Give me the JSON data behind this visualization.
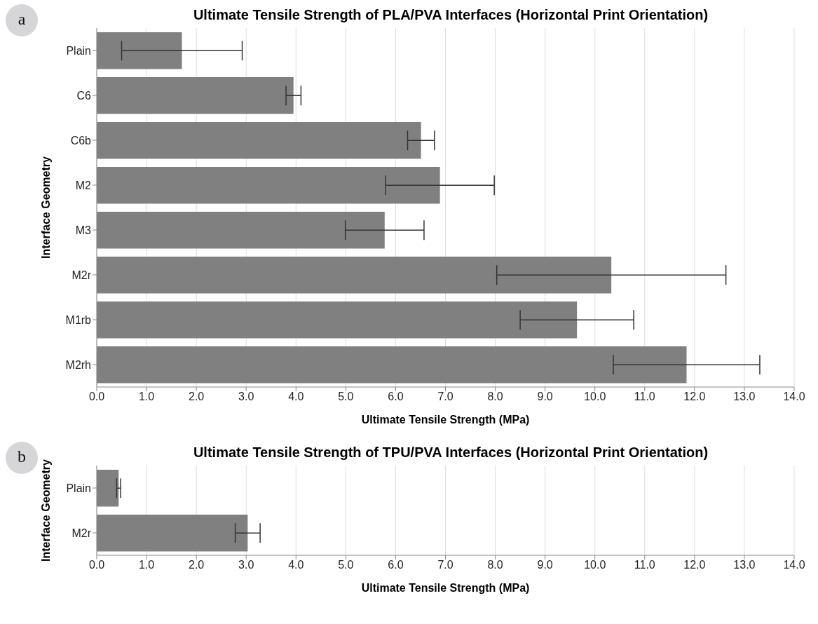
{
  "chart_data": [
    {
      "type": "bar",
      "orientation": "horizontal",
      "title": "Ultimate Tensile Strength of PLA/PVA Interfaces (Horizontal Print Orientation)",
      "xlabel": "Ultimate Tensile Strength (MPa)",
      "ylabel": "Interface Geometry",
      "annotations": [
        "a"
      ],
      "categories": [
        "Plain",
        "C6",
        "C6b",
        "M2",
        "M3",
        "M2r",
        "M1rb",
        "M2rh"
      ],
      "values": [
        1.71,
        3.95,
        6.51,
        6.89,
        5.78,
        10.33,
        9.64,
        11.84
      ],
      "errors": [
        1.21,
        0.15,
        0.27,
        1.09,
        0.79,
        2.3,
        1.14,
        1.47
      ],
      "color": "#808080",
      "grid": "x",
      "xlim": [
        0,
        14
      ],
      "xticks": [
        {
          "value": 0,
          "label": "0.0"
        },
        {
          "value": 1,
          "label": "1.0"
        },
        {
          "value": 2,
          "label": "2.0"
        },
        {
          "value": 3,
          "label": "3.0"
        },
        {
          "value": 4,
          "label": "4.0"
        },
        {
          "value": 5,
          "label": "5.0"
        },
        {
          "value": 6,
          "label": "6.0"
        },
        {
          "value": 7,
          "label": "7.0"
        },
        {
          "value": 8,
          "label": "8.0"
        },
        {
          "value": 9,
          "label": "9.0"
        },
        {
          "value": 10,
          "label": "10.0"
        },
        {
          "value": 11,
          "label": "11.0"
        },
        {
          "value": 12,
          "label": "12.0"
        },
        {
          "value": 13,
          "label": "13.0"
        },
        {
          "value": 14,
          "label": "14.0"
        }
      ]
    },
    {
      "type": "bar",
      "orientation": "horizontal",
      "title": "Ultimate Tensile Strength of TPU/PVA Interfaces (Horizontal Print Orientation)",
      "xlabel": "Ultimate Tensile Strength (MPa)",
      "ylabel": "Interface Geometry",
      "annotations": [
        "b"
      ],
      "categories": [
        "Plain",
        "M2r"
      ],
      "values": [
        0.44,
        3.03
      ],
      "errors": [
        0.04,
        0.25
      ],
      "color": "#808080",
      "grid": "x",
      "xlim": [
        0,
        14
      ],
      "xticks": [
        {
          "value": 0,
          "label": "0.0"
        },
        {
          "value": 1,
          "label": "1.0"
        },
        {
          "value": 2,
          "label": "2.0"
        },
        {
          "value": 3,
          "label": "3.0"
        },
        {
          "value": 4,
          "label": "4.0"
        },
        {
          "value": 5,
          "label": "5.0"
        },
        {
          "value": 6,
          "label": "6.0"
        },
        {
          "value": 7,
          "label": "7.0"
        },
        {
          "value": 8,
          "label": "8.0"
        },
        {
          "value": 9,
          "label": "9.0"
        },
        {
          "value": 10,
          "label": "10.0"
        },
        {
          "value": 11,
          "label": "11.0"
        },
        {
          "value": 12,
          "label": "12.0"
        },
        {
          "value": 13,
          "label": "13.0"
        },
        {
          "value": 14,
          "label": "14.0"
        }
      ]
    }
  ]
}
